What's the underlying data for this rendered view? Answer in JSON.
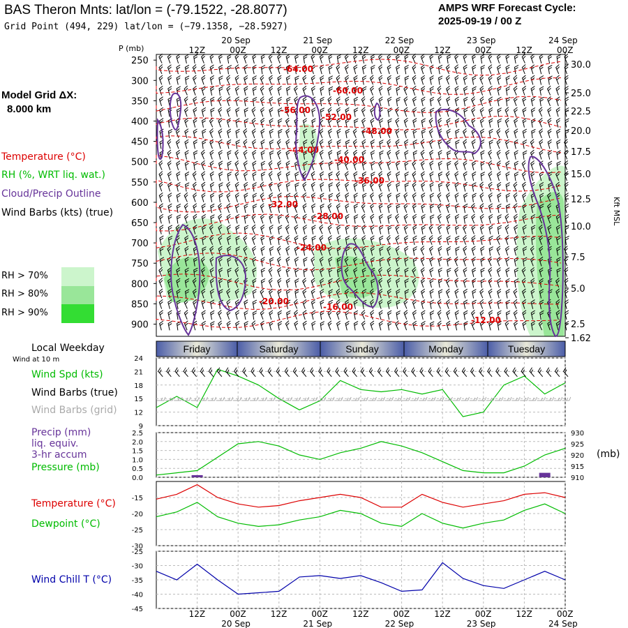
{
  "header": {
    "title": "BAS Theron Mnts:  lat/lon = (-79.1522, -28.8077)",
    "grid_point": "Grid Point (494, 229) lat/lon = (−79.1358, −28.5927)",
    "cycle_label": "AMPS WRF Forecast Cycle:",
    "cycle_value": "2025-09-19 / 00  Z"
  },
  "model_grid": {
    "label": "Model Grid ΔX:",
    "value": "8.000 km"
  },
  "legend": {
    "temperature": "Temperature (°C)",
    "rh": "RH (%, WRT liq. wat.)",
    "cloud": "Cloud/Precip Outline",
    "barbs": "Wind Barbs (kts) (true)"
  },
  "rh_legend": {
    "items": [
      {
        "label": "RH > 70%",
        "color": "#ccf5cc"
      },
      {
        "label": "RH > 80%",
        "color": "#99e699"
      },
      {
        "label": "RH > 90%",
        "color": "#33dd33"
      }
    ]
  },
  "axis": {
    "pressure_title": "P (mb)",
    "pressure_ticks": [
      "250",
      "300",
      "350",
      "400",
      "450",
      "500",
      "550",
      "600",
      "650",
      "700",
      "750",
      "800",
      "850",
      "900"
    ],
    "kft_ticks": [
      "30.0",
      "25.0",
      "22.5",
      "20.0",
      "17.5",
      "15.0",
      "12.5",
      "10.0",
      "7.5",
      "5.0",
      "2.5",
      "1.62"
    ],
    "kft_title": "Kft MSL",
    "time_ticks": [
      "12Z",
      "00Z",
      "12Z",
      "00Z",
      "12Z",
      "00Z",
      "12Z",
      "00Z",
      "12Z",
      "00Z"
    ],
    "dates": [
      "20 Sep",
      "21 Sep",
      "22 Sep",
      "23 Sep",
      "24 Sep"
    ]
  },
  "weekdays": {
    "title": "Local Weekday",
    "subtitle": "Wind at 10 m",
    "days": [
      "Friday",
      "Saturday",
      "Sunday",
      "Monday",
      "Tuesday"
    ]
  },
  "panels": {
    "wind": {
      "labels": [
        "Wind Spd (kts)",
        "Wind Barbs (true)",
        "Wind Barbs (grid)"
      ],
      "colors": [
        "#00bb00",
        "#000000",
        "#aaaaaa"
      ],
      "ticks": [
        "24",
        "21",
        "18",
        "15",
        "12",
        "9"
      ]
    },
    "precip": {
      "labels": [
        "Precip (mm)",
        "liq. equiv.",
        "3-hr accum",
        "Pressure (mb)"
      ],
      "colors": [
        "#663399",
        "#663399",
        "#663399",
        "#00bb00"
      ],
      "left_ticks": [
        "2.5",
        "2.0",
        "1.5",
        "1.0",
        "0.5",
        "0.0"
      ],
      "right_ticks": [
        "930",
        "925",
        "920",
        "915",
        "910"
      ],
      "right_unit": "(mb)"
    },
    "temp": {
      "labels": [
        "Temperature (°C)",
        "Dewpoint (°C)"
      ],
      "colors": [
        "#dd0000",
        "#00bb00"
      ],
      "ticks": [
        "-15",
        "-20",
        "-25",
        "-30"
      ]
    },
    "chill": {
      "labels": [
        "Wind Chill T (°C)"
      ],
      "colors": [
        "#0000aa"
      ],
      "ticks": [
        "-25",
        "-30",
        "-35",
        "-40",
        "-45"
      ]
    }
  },
  "chart_data": {
    "type": "line",
    "time_hours": [
      0,
      6,
      12,
      18,
      24,
      30,
      36,
      42,
      48,
      54,
      60,
      66,
      72,
      78,
      84,
      90,
      96,
      102,
      108,
      114,
      120
    ],
    "temperature_contours": [
      {
        "label": "-64.00",
        "p": 258
      },
      {
        "label": "-60.00",
        "p": 305
      },
      {
        "label": "-56.00",
        "p": 352
      },
      {
        "label": "-52.00",
        "p": 370
      },
      {
        "label": "-48.00",
        "p": 405
      },
      {
        "label": "-44.00",
        "p": 462
      },
      {
        "label": "-40.00",
        "p": 490
      },
      {
        "label": "-36.00",
        "p": 550
      },
      {
        "label": "-32.00",
        "p": 598
      },
      {
        "label": "-28.00",
        "p": 630
      },
      {
        "label": "-24.00",
        "p": 706
      },
      {
        "label": "-20.00",
        "p": 862
      },
      {
        "label": "-16.00",
        "p": 875
      },
      {
        "label": "-12.00",
        "p": 910
      }
    ],
    "series": [
      {
        "name": "Wind Spd (kts)",
        "ylim": [
          9,
          24
        ],
        "values": [
          13,
          15.5,
          13,
          21.5,
          20,
          18,
          15,
          12.5,
          14.5,
          19,
          17,
          16.5,
          17,
          16,
          17,
          11,
          12,
          18,
          20,
          16,
          18.5
        ]
      },
      {
        "name": "Precip (mm)",
        "ylim": [
          0,
          2.5
        ],
        "values": [
          0,
          0,
          0.12,
          0,
          0,
          0,
          0,
          0,
          0,
          0,
          0,
          0,
          0,
          0,
          0,
          0,
          0,
          0,
          0,
          0.25,
          0
        ]
      },
      {
        "name": "Pressure (mb)",
        "ylim": [
          910,
          930
        ],
        "values": [
          911,
          912,
          913,
          919,
          925,
          926,
          924,
          920,
          918,
          921,
          923,
          926,
          924,
          921,
          917,
          913,
          912,
          912,
          915,
          920,
          923
        ]
      },
      {
        "name": "Temperature (°C)",
        "ylim": [
          -30,
          -10
        ],
        "values": [
          -15.5,
          -14,
          -11,
          -15,
          -17,
          -18,
          -17.5,
          -16,
          -15,
          -14,
          -15,
          -18,
          -18,
          -14,
          -16.5,
          -18,
          -17,
          -16,
          -14,
          -13.5,
          -15
        ]
      },
      {
        "name": "Dewpoint (°C)",
        "ylim": [
          -30,
          -10
        ],
        "values": [
          -21,
          -19.5,
          -16.5,
          -21,
          -23,
          -24,
          -23.5,
          -22,
          -21,
          -19,
          -20,
          -23,
          -24,
          -20,
          -23,
          -24.5,
          -23,
          -22,
          -19,
          -17,
          -20
        ]
      },
      {
        "name": "Wind Chill T (°C)",
        "ylim": [
          -45,
          -25
        ],
        "values": [
          -32,
          -35,
          -29.5,
          -35,
          -40,
          -39.5,
          -39,
          -34,
          -33.5,
          -34.5,
          -33.5,
          -36,
          -39,
          -38.5,
          -29,
          -34.5,
          -37,
          -38,
          -35,
          -32,
          -35
        ]
      }
    ]
  }
}
